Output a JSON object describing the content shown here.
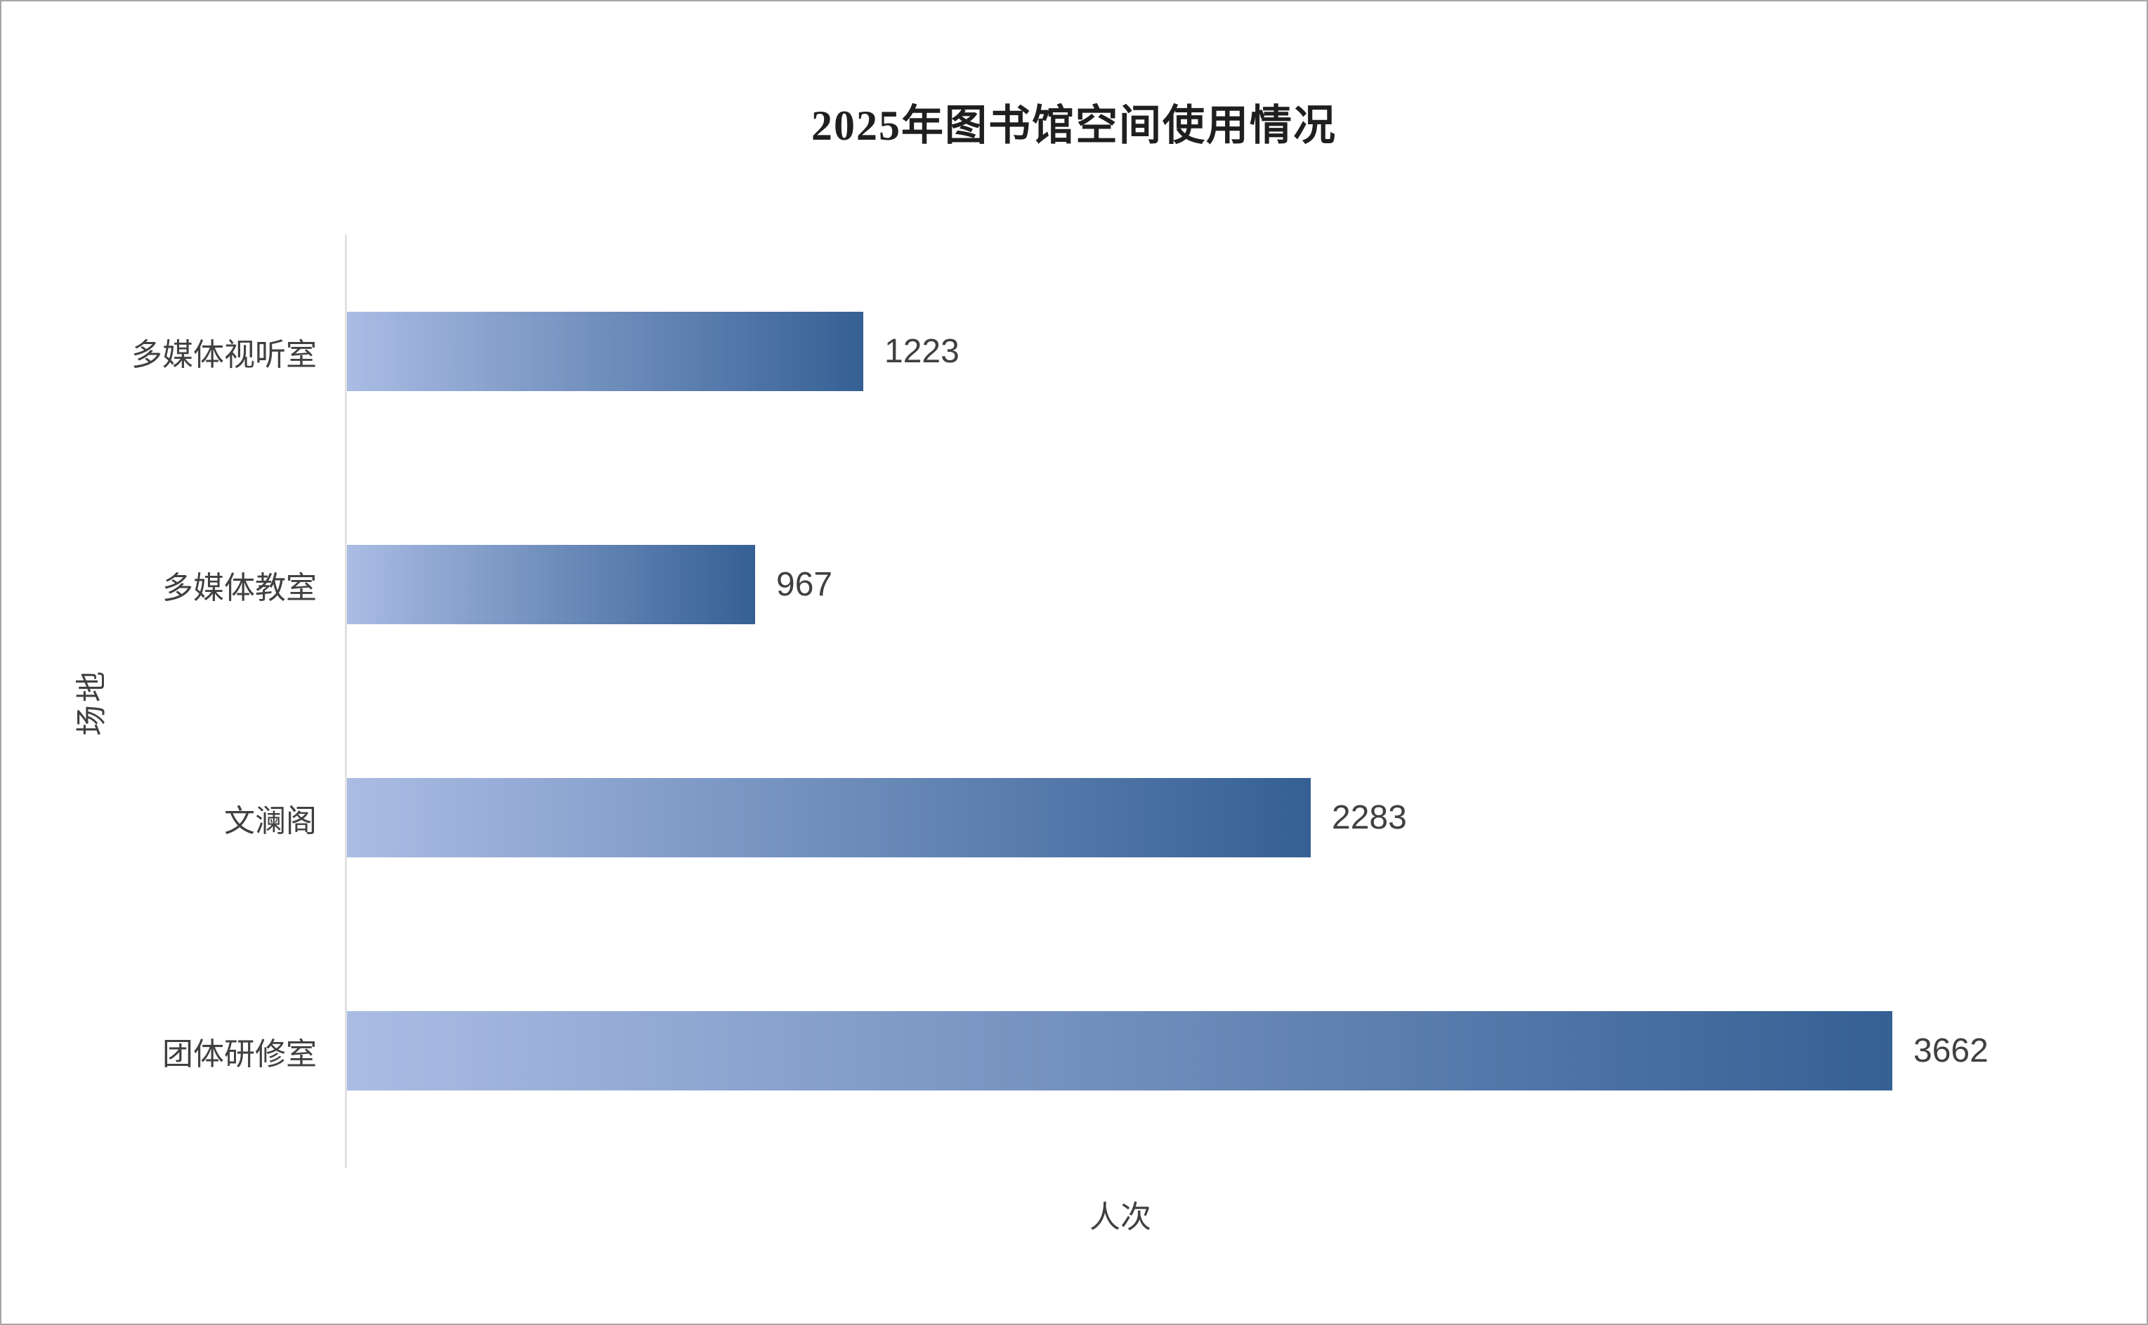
{
  "page": {
    "background_color": "#ffffff",
    "border_color": "#a6a6a6"
  },
  "chart_data": {
    "type": "bar",
    "orientation": "horizontal",
    "title": "2025年图书馆空间使用情况",
    "xlabel": "人次",
    "ylabel": "场地",
    "categories": [
      "多媒体视听室",
      "多媒体教室",
      "文澜阁",
      "团体研修室"
    ],
    "values": [
      1223,
      967,
      2283,
      3662
    ],
    "category_order": "top-to-bottom",
    "xlim": [
      0,
      3662
    ],
    "grid": false,
    "legend": false,
    "value_labels_shown": true,
    "bar_gradient_start": "#aabce4",
    "bar_gradient_end": "#356094",
    "axis_line_color": "#e1e1e1",
    "label_color": "#404040",
    "title_color": "#1f1f1f"
  }
}
